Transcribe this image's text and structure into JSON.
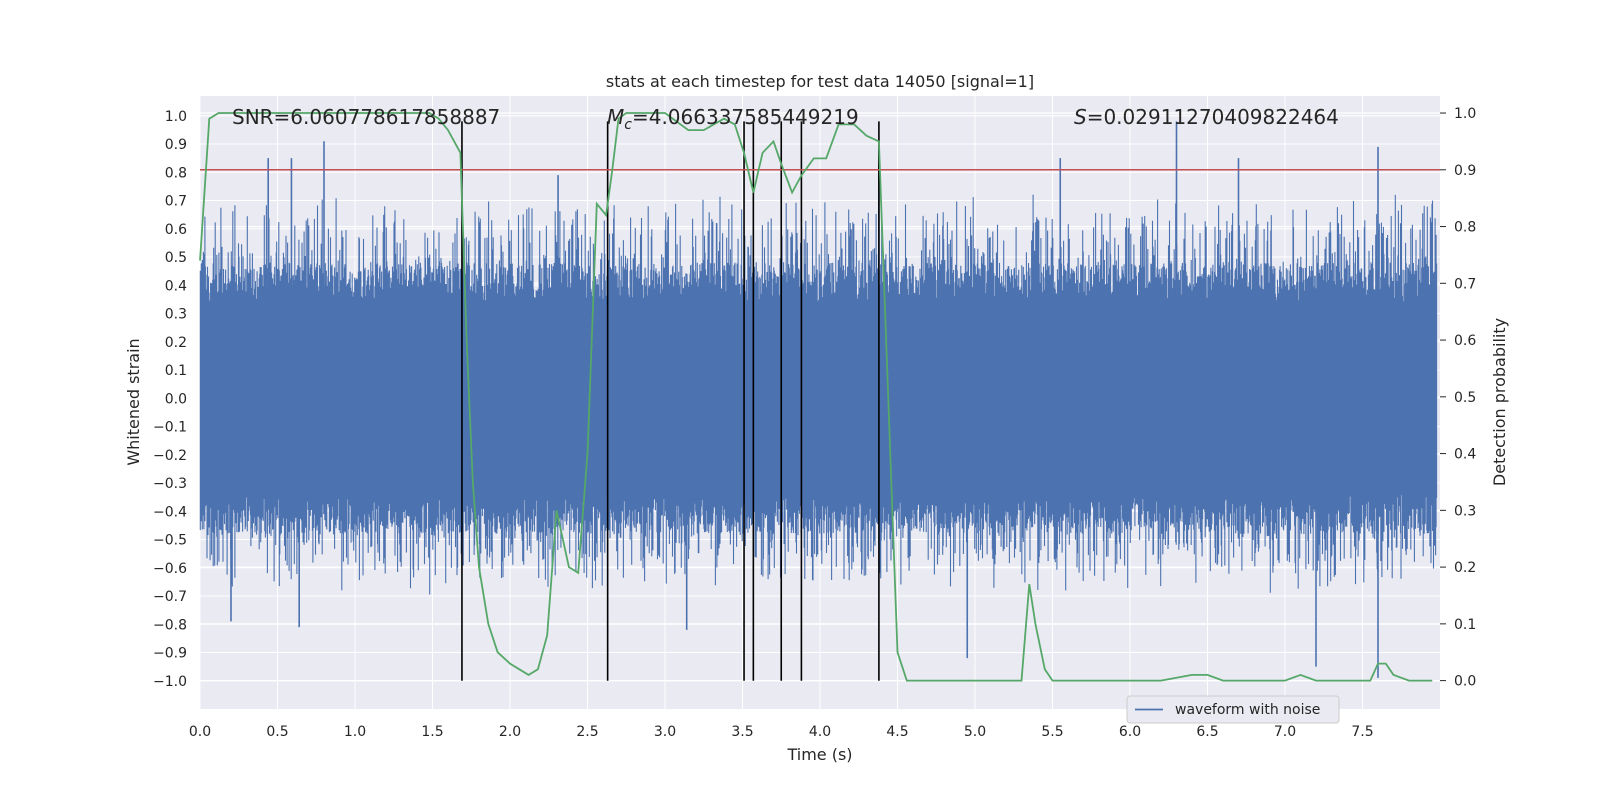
{
  "chart_data": {
    "type": "line",
    "title": "stats at each timestep for test data 14050 [signal=1]",
    "xlabel": "Time (s)",
    "ylabel_left": "Whitened strain",
    "ylabel_right": "Detection probability",
    "xlim": [
      0.0,
      8.0
    ],
    "ylim_left": [
      -1.1,
      1.07
    ],
    "ylim_right": [
      -0.05,
      1.03
    ],
    "x_ticks": [
      0.0,
      0.5,
      1.0,
      1.5,
      2.0,
      2.5,
      3.0,
      3.5,
      4.0,
      4.5,
      5.0,
      5.5,
      6.0,
      6.5,
      7.0,
      7.5
    ],
    "x_tick_labels": [
      "0.0",
      "0.5",
      "1.0",
      "1.5",
      "2.0",
      "2.5",
      "3.0",
      "3.5",
      "4.0",
      "4.5",
      "5.0",
      "5.5",
      "6.0",
      "6.5",
      "7.0",
      "7.5"
    ],
    "y_left_ticks": [
      -1.0,
      -0.9,
      -0.8,
      -0.7,
      -0.6,
      -0.5,
      -0.4,
      -0.3,
      -0.2,
      -0.1,
      0.0,
      0.1,
      0.2,
      0.3,
      0.4,
      0.5,
      0.6,
      0.7,
      0.8,
      0.9,
      1.0
    ],
    "y_left_tick_labels": [
      "−1.0",
      "−0.9",
      "−0.8",
      "−0.7",
      "−0.6",
      "−0.5",
      "−0.4",
      "−0.3",
      "−0.2",
      "−0.1",
      "0.0",
      "0.1",
      "0.2",
      "0.3",
      "0.4",
      "0.5",
      "0.6",
      "0.7",
      "0.8",
      "0.9",
      "1.0"
    ],
    "y_right_ticks": [
      0.0,
      0.1,
      0.2,
      0.3,
      0.4,
      0.5,
      0.6,
      0.7,
      0.8,
      0.9,
      1.0
    ],
    "y_right_tick_labels": [
      "0.0",
      "0.1",
      "0.2",
      "0.3",
      "0.4",
      "0.5",
      "0.6",
      "0.7",
      "0.8",
      "0.9",
      "1.0"
    ],
    "annotations": {
      "snr": "SNR=6.060778617858887",
      "mc_symbol": "M",
      "mc_subscript": "c",
      "mc_value": "=4.066337585449219",
      "s_symbol": "S",
      "s_value": "=0.02911270409822464"
    },
    "threshold": {
      "value": 0.9,
      "axis": "right",
      "color": "#c44e52"
    },
    "vlines": [
      1.69,
      2.63,
      3.51,
      3.57,
      3.75,
      3.88,
      4.38
    ],
    "vline_ymax_left": 0.98,
    "legend": {
      "label": "waveform with noise",
      "location": "lower-right"
    },
    "series": [
      {
        "name": "waveform with noise",
        "axis": "left",
        "color": "#4c72b0",
        "style": "dense noise; typical envelope ±0.4 to ±0.5, peaks to ±0.9",
        "spikes": [
          {
            "x": 0.8,
            "y": 0.91
          },
          {
            "x": 0.59,
            "y": 0.85
          },
          {
            "x": 0.44,
            "y": 0.85
          },
          {
            "x": 2.31,
            "y": 0.79
          },
          {
            "x": 6.3,
            "y": 0.98
          },
          {
            "x": 7.6,
            "y": 0.89
          },
          {
            "x": 4.38,
            "y": 0.88
          },
          {
            "x": 5.55,
            "y": 0.85
          },
          {
            "x": 6.7,
            "y": 0.85
          },
          {
            "x": 4.95,
            "y": -0.92
          },
          {
            "x": 7.2,
            "y": -0.95
          },
          {
            "x": 7.6,
            "y": -0.99
          },
          {
            "x": 3.14,
            "y": -0.82
          },
          {
            "x": 0.2,
            "y": -0.79
          },
          {
            "x": 0.64,
            "y": -0.81
          }
        ]
      },
      {
        "name": "detection probability",
        "axis": "right",
        "color": "#55a868",
        "x": [
          0.0,
          0.06,
          0.12,
          0.5,
          1.0,
          1.48,
          1.54,
          1.6,
          1.68,
          1.72,
          1.76,
          1.8,
          1.86,
          1.92,
          2.0,
          2.06,
          2.12,
          2.18,
          2.24,
          2.3,
          2.34,
          2.38,
          2.44,
          2.5,
          2.56,
          2.62,
          2.66,
          2.7,
          2.75,
          3.0,
          3.15,
          3.25,
          3.38,
          3.45,
          3.51,
          3.57,
          3.63,
          3.7,
          3.75,
          3.82,
          3.88,
          3.96,
          4.04,
          4.12,
          4.22,
          4.3,
          4.38,
          4.44,
          4.5,
          4.56,
          4.62,
          5.0,
          5.3,
          5.35,
          5.39,
          5.45,
          5.5,
          5.6,
          5.8,
          6.0,
          6.2,
          6.4,
          6.5,
          6.6,
          6.8,
          7.0,
          7.1,
          7.2,
          7.4,
          7.55,
          7.6,
          7.65,
          7.7,
          7.8,
          7.95
        ],
        "y": [
          0.74,
          0.99,
          1.0,
          1.0,
          1.0,
          1.0,
          0.99,
          0.97,
          0.93,
          0.6,
          0.35,
          0.2,
          0.1,
          0.05,
          0.03,
          0.02,
          0.01,
          0.02,
          0.08,
          0.3,
          0.25,
          0.2,
          0.19,
          0.4,
          0.84,
          0.82,
          0.9,
          0.99,
          1.0,
          1.0,
          0.97,
          0.97,
          0.99,
          0.98,
          0.93,
          0.86,
          0.93,
          0.95,
          0.91,
          0.86,
          0.89,
          0.92,
          0.92,
          0.98,
          0.98,
          0.96,
          0.95,
          0.5,
          0.05,
          0.0,
          0.0,
          0.0,
          0.0,
          0.17,
          0.1,
          0.02,
          0.0,
          0.0,
          0.0,
          0.0,
          0.0,
          0.01,
          0.01,
          0.0,
          0.0,
          0.0,
          0.01,
          0.0,
          0.0,
          0.0,
          0.03,
          0.03,
          0.01,
          0.0,
          0.0
        ]
      }
    ]
  }
}
